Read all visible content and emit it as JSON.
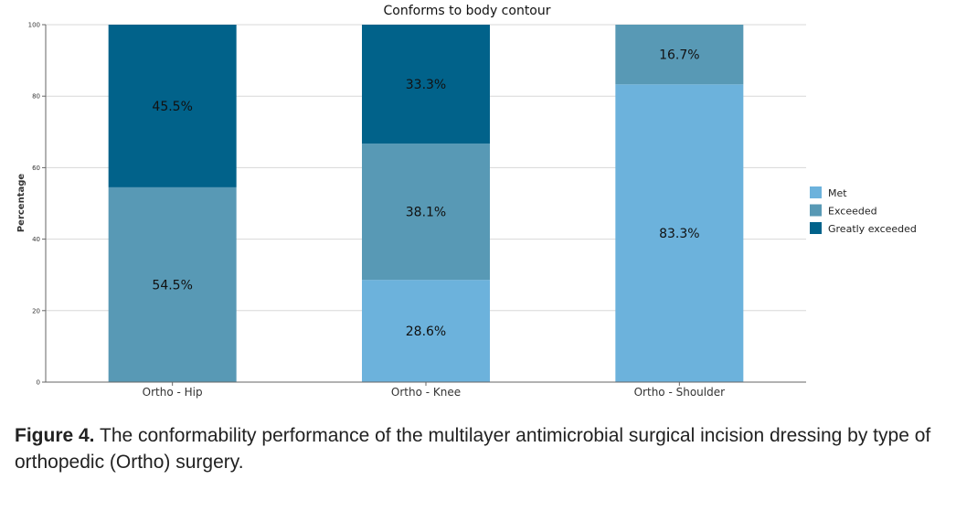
{
  "chart_data": {
    "type": "bar",
    "stacked": true,
    "title": "Conforms to body contour",
    "ylabel": "Percentage",
    "xlabel": "",
    "ylim": [
      0,
      100
    ],
    "yticks": [
      0,
      20,
      40,
      60,
      80,
      100
    ],
    "grid": true,
    "legend_position": "right",
    "categories": [
      "Ortho - Hip",
      "Ortho - Knee",
      "Ortho - Shoulder"
    ],
    "series": [
      {
        "name": "Met",
        "color": "#6cb2dc",
        "values": [
          0,
          28.6,
          83.3
        ],
        "labels": [
          "",
          "28.6%",
          "83.3%"
        ]
      },
      {
        "name": "Exceeded",
        "color": "#5899b5",
        "values": [
          54.5,
          38.1,
          16.7
        ],
        "labels": [
          "54.5%",
          "38.1%",
          "16.7%"
        ]
      },
      {
        "name": "Greatly exceeded",
        "color": "#01628a",
        "values": [
          45.5,
          33.3,
          0
        ],
        "labels": [
          "45.5%",
          "33.3%",
          ""
        ]
      }
    ]
  },
  "caption": {
    "label": "Figure 4.",
    "text": " The conformability performance of the multilayer antimicrobial surgical incision dressing by type of orthopedic (Ortho) surgery."
  }
}
